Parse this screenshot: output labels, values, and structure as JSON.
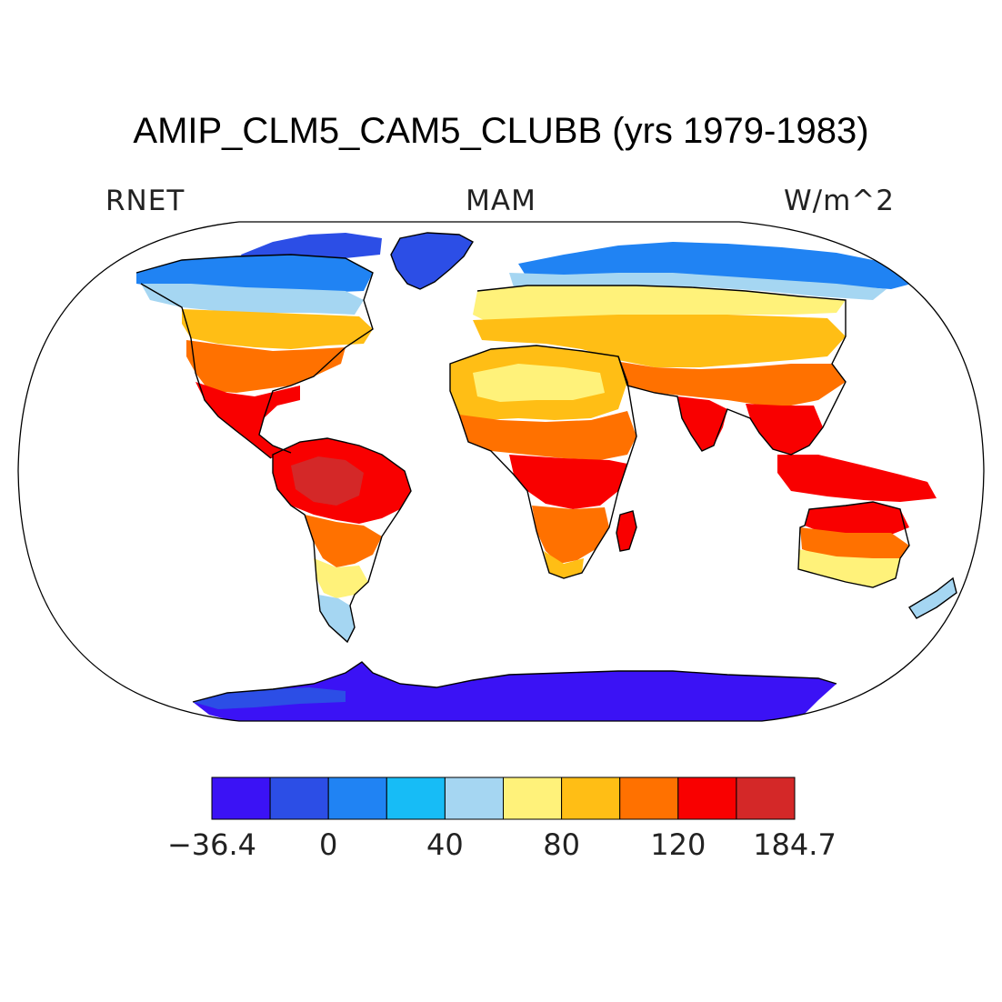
{
  "title": "AMIP_CLM5_CAM5_CLUBB (yrs 1979-1983)",
  "variable": "RNET",
  "season": "MAM",
  "units": "W/m^2",
  "colorbar": {
    "colors": [
      "#3b12f5",
      "#2c4ee6",
      "#2083f3",
      "#17bcf6",
      "#a5d6f2",
      "#fff27a",
      "#ffbe15",
      "#ff7100",
      "#f90000",
      "#d42828"
    ],
    "labels": [
      "−36.4",
      "0",
      "40",
      "80",
      "120",
      "184.7"
    ]
  },
  "map": {
    "projection": "robinson",
    "ocean": "#ffffff",
    "coastline": "#000000"
  }
}
